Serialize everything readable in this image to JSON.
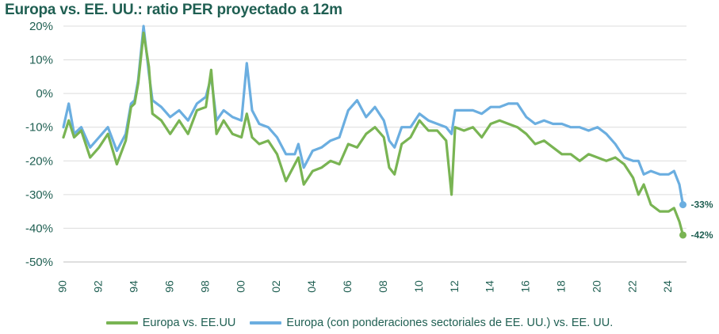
{
  "title": "Europa vs. EE. UU.: ratio PER proyectado a 12m",
  "colors": {
    "europa": "#79b453",
    "europa_weighted": "#6baee0",
    "axis_text": "#1f5f52",
    "grid": "#dcdcdc"
  },
  "chart_data": {
    "type": "line",
    "title": "Europa vs. EE. UU.: ratio PER proyectado a 12m",
    "xlabel": "",
    "ylabel": "",
    "xlim": [
      1990,
      2025
    ],
    "ylim": [
      -50,
      20
    ],
    "y_ticks": [
      "20%",
      "10%",
      "0%",
      "-10%",
      "-20%",
      "-30%",
      "-40%",
      "-50%"
    ],
    "x_ticks": [
      "90",
      "92",
      "94",
      "96",
      "98",
      "00",
      "02",
      "04",
      "06",
      "08",
      "10",
      "12",
      "14",
      "16",
      "18",
      "20",
      "22",
      "24"
    ],
    "grid": "horizontal",
    "legend_position": "bottom",
    "series": [
      {
        "name": "Europa vs. EE.UU",
        "end_label": "-42%",
        "x": [
          1990,
          1990.3,
          1990.6,
          1991,
          1991.5,
          1992,
          1992.5,
          1993,
          1993.5,
          1993.8,
          1994,
          1994.2,
          1994.5,
          1994.8,
          1995,
          1995.5,
          1996,
          1996.5,
          1997,
          1997.5,
          1998,
          1998.3,
          1998.6,
          1999,
          1999.5,
          2000,
          2000.3,
          2000.6,
          2001,
          2001.5,
          2002,
          2002.5,
          2003,
          2003.2,
          2003.5,
          2004,
          2004.5,
          2005,
          2005.5,
          2006,
          2006.5,
          2007,
          2007.5,
          2008,
          2008.3,
          2008.6,
          2009,
          2009.5,
          2010,
          2010.5,
          2011,
          2011.5,
          2011.8,
          2012,
          2012.5,
          2013,
          2013.5,
          2014,
          2014.5,
          2015,
          2015.5,
          2016,
          2016.5,
          2017,
          2017.5,
          2018,
          2018.5,
          2019,
          2019.5,
          2020,
          2020.5,
          2021,
          2021.5,
          2022,
          2022.3,
          2022.6,
          2023,
          2023.5,
          2024,
          2024.3,
          2024.6,
          2024.8
        ],
        "values": [
          -13,
          -8,
          -13,
          -11,
          -19,
          -16,
          -12,
          -21,
          -14,
          -4,
          -3,
          3,
          18,
          8,
          -6,
          -8,
          -12,
          -8,
          -12,
          -5,
          -4,
          7,
          -12,
          -8,
          -12,
          -13,
          -6,
          -13,
          -15,
          -14,
          -18,
          -26,
          -21,
          -19,
          -27,
          -23,
          -22,
          -20,
          -21,
          -15,
          -16,
          -12,
          -10,
          -13,
          -22,
          -24,
          -15,
          -13,
          -8,
          -11,
          -11,
          -14,
          -30,
          -10,
          -11,
          -10,
          -13,
          -9,
          -8,
          -9,
          -10,
          -12,
          -15,
          -14,
          -16,
          -18,
          -18,
          -20,
          -18,
          -19,
          -20,
          -19,
          -21,
          -25,
          -30,
          -27,
          -33,
          -35,
          -35,
          -34,
          -38,
          -42
        ]
      },
      {
        "name": "Europa (con ponderaciones sectoriales de EE. UU.) vs. EE. UU.",
        "end_label": "-33%",
        "x": [
          1990,
          1990.3,
          1990.6,
          1991,
          1991.5,
          1992,
          1992.5,
          1993,
          1993.5,
          1993.8,
          1994,
          1994.2,
          1994.5,
          1994.8,
          1995,
          1995.5,
          1996,
          1996.5,
          1997,
          1997.5,
          1998,
          1998.3,
          1998.6,
          1999,
          1999.5,
          2000,
          2000.3,
          2000.6,
          2001,
          2001.5,
          2002,
          2002.5,
          2003,
          2003.2,
          2003.5,
          2004,
          2004.5,
          2005,
          2005.5,
          2006,
          2006.5,
          2007,
          2007.5,
          2008,
          2008.3,
          2008.6,
          2009,
          2009.5,
          2010,
          2010.5,
          2011,
          2011.5,
          2011.8,
          2012,
          2012.5,
          2013,
          2013.5,
          2014,
          2014.5,
          2015,
          2015.5,
          2016,
          2016.5,
          2017,
          2017.5,
          2018,
          2018.5,
          2019,
          2019.5,
          2020,
          2020.5,
          2021,
          2021.5,
          2022,
          2022.3,
          2022.6,
          2023,
          2023.5,
          2024,
          2024.3,
          2024.6,
          2024.8
        ],
        "values": [
          -10,
          -3,
          -12,
          -10,
          -16,
          -13,
          -10,
          -17,
          -12,
          -3,
          -2,
          4,
          20,
          6,
          -2,
          -4,
          -7,
          -5,
          -8,
          -3,
          -1,
          5,
          -8,
          -5,
          -7,
          -8,
          9,
          -5,
          -9,
          -10,
          -13,
          -18,
          -18,
          -15,
          -22,
          -17,
          -16,
          -14,
          -13,
          -5,
          -2,
          -7,
          -4,
          -8,
          -14,
          -16,
          -10,
          -10,
          -6,
          -8,
          -9,
          -10,
          -12,
          -5,
          -5,
          -5,
          -6,
          -4,
          -4,
          -3,
          -3,
          -7,
          -9,
          -8,
          -9,
          -9,
          -10,
          -10,
          -11,
          -10,
          -12,
          -15,
          -19,
          -20,
          -20,
          -24,
          -23,
          -24,
          -24,
          -23,
          -27,
          -33
        ]
      }
    ]
  },
  "legend": [
    {
      "label": "Europa vs. EE.UU",
      "color": "#79b453"
    },
    {
      "label": "Europa (con ponderaciones sectoriales de EE. UU.) vs. EE. UU.",
      "color": "#6baee0"
    }
  ]
}
